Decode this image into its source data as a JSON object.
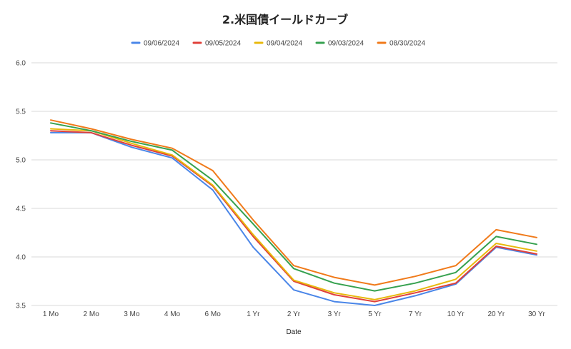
{
  "chart_data": {
    "type": "line",
    "title": "2.米国債イールドカーブ",
    "xlabel": "Date",
    "ylabel": "",
    "ylim": [
      3.5,
      6.0
    ],
    "yticks": [
      "3.5",
      "4.0",
      "4.5",
      "5.0",
      "5.5",
      "6.0"
    ],
    "grid": true,
    "legend_position": "top",
    "categories": [
      "1 Mo",
      "2 Mo",
      "3 Mo",
      "4 Mo",
      "6 Mo",
      "1 Yr",
      "2 Yr",
      "3 Yr",
      "5 Yr",
      "7 Yr",
      "10 Yr",
      "20 Yr",
      "30 Yr"
    ],
    "series": [
      {
        "name": "09/06/2024",
        "color": "#4a86e8",
        "values": [
          5.28,
          5.28,
          5.13,
          5.02,
          4.69,
          4.1,
          3.66,
          3.54,
          3.5,
          3.6,
          3.72,
          4.1,
          4.02
        ]
      },
      {
        "name": "09/05/2024",
        "color": "#e0403a",
        "values": [
          5.3,
          5.28,
          5.15,
          5.04,
          4.73,
          4.21,
          3.75,
          3.61,
          3.54,
          3.63,
          3.73,
          4.11,
          4.03
        ]
      },
      {
        "name": "09/04/2024",
        "color": "#e8b90c",
        "values": [
          5.32,
          5.3,
          5.17,
          5.05,
          4.74,
          4.23,
          3.76,
          3.63,
          3.56,
          3.65,
          3.77,
          4.14,
          4.06
        ]
      },
      {
        "name": "09/03/2024",
        "color": "#36a14f",
        "values": [
          5.38,
          5.3,
          5.19,
          5.1,
          4.79,
          4.34,
          3.88,
          3.73,
          3.65,
          3.73,
          3.84,
          4.21,
          4.13
        ]
      },
      {
        "name": "08/30/2024",
        "color": "#f07a1a",
        "values": [
          5.41,
          5.32,
          5.21,
          5.12,
          4.89,
          4.38,
          3.91,
          3.79,
          3.71,
          3.8,
          3.91,
          4.28,
          4.2
        ]
      }
    ]
  }
}
